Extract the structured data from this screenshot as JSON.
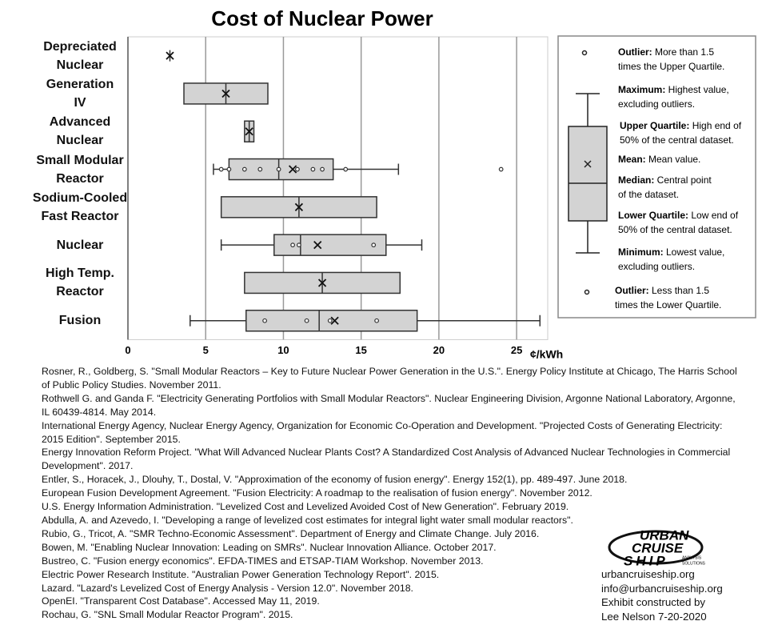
{
  "chart_data": {
    "type": "box",
    "title": "Cost of Nuclear Power",
    "x_label": "¢/kWh",
    "categories": [
      "Depreciated\nNuclear",
      "Generation\nIV",
      "Advanced\nNuclear",
      "Small Modular\nReactor",
      "Sodium-Cooled\nFast Reactor",
      "Nuclear",
      "High Temp.\nReactor",
      "Fusion"
    ],
    "boxes": [
      {
        "min": 2.7,
        "q1": 2.7,
        "median": 2.7,
        "q3": 2.7,
        "max": 2.7,
        "mean": 2.7,
        "points": [],
        "outliers": []
      },
      {
        "min": 3.6,
        "q1": 3.6,
        "median": 6.3,
        "q3": 9.0,
        "max": 9.0,
        "mean": 6.3,
        "points": [],
        "outliers": []
      },
      {
        "min": 7.5,
        "q1": 7.5,
        "median": 7.8,
        "q3": 8.1,
        "max": 8.1,
        "mean": 7.8,
        "points": [],
        "outliers": []
      },
      {
        "min": 5.5,
        "q1": 6.5,
        "median": 9.7,
        "q3": 13.2,
        "max": 17.4,
        "mean": 10.6,
        "points": [
          6.0,
          6.5,
          8.5,
          7.5,
          9.7,
          10.9,
          11.9,
          12.5,
          14.0
        ],
        "outliers": [
          24.0
        ]
      },
      {
        "min": 6.0,
        "q1": 6.0,
        "median": 11.0,
        "q3": 16.0,
        "max": 16.0,
        "mean": 11.0,
        "points": [],
        "outliers": []
      },
      {
        "min": 6.0,
        "q1": 9.4,
        "median": 11.1,
        "q3": 16.6,
        "max": 18.9,
        "mean": 12.2,
        "points": [
          10.6,
          11.0,
          15.8
        ],
        "outliers": []
      },
      {
        "min": 7.5,
        "q1": 7.5,
        "median": 12.5,
        "q3": 17.5,
        "max": 17.5,
        "mean": 12.5,
        "points": [],
        "outliers": []
      },
      {
        "min": 4.0,
        "q1": 7.6,
        "median": 12.3,
        "q3": 18.6,
        "max": 26.5,
        "mean": 13.3,
        "points": [
          8.8,
          11.5,
          13.0,
          16.0
        ],
        "outliers": []
      }
    ],
    "box_color": "#d3d3d3",
    "xlim": [
      0,
      27
    ],
    "xticks": [
      0,
      5,
      10,
      15,
      20,
      25
    ],
    "grid": true,
    "legend": [
      {
        "term": "Outlier:",
        "lines": [
          " More than 1.5",
          "times the Upper Quartile."
        ]
      },
      {
        "term": "Maximum:",
        "lines": [
          " Highest value,",
          "excluding outliers."
        ]
      },
      {
        "term": "Upper Quartile:",
        "lines": [
          " High end of",
          "50% of the central dataset."
        ]
      },
      {
        "term": "Mean:",
        "lines": [
          " Mean value."
        ]
      },
      {
        "term": "Median:",
        "lines": [
          " Central point",
          "of the dataset."
        ]
      },
      {
        "term": "Lower Quartile:",
        "lines": [
          " Low end of",
          "50% of the central dataset."
        ]
      },
      {
        "term": "Minimum:",
        "lines": [
          " Lowest value,",
          "excluding outliers."
        ]
      },
      {
        "term": "Outlier:",
        "lines": [
          " Less than 1.5",
          "times the Lower Quartile."
        ]
      }
    ]
  },
  "references": [
    "Rosner, R., Goldberg, S. \"Small Modular Reactors – Key to Future Nuclear Power Generation in the U.S.\". Energy Policy Institute at Chicago, The Harris School of Public Policy Studies. November 2011.",
    "Rothwell G. and Ganda F. \"Electricity Generating Portfolios with Small Modular Reactors\". Nuclear Engineering Division, Argonne National Laboratory, Argonne, IL 60439-4814. May 2014.",
    "International Energy Agency, Nuclear Energy Agency, Organization for Economic Co-Operation and Development. \"Projected Costs of Generating Electricity: 2015 Edition\". September 2015.",
    "Energy Innovation Reform Project. \"What Will Advanced Nuclear Plants Cost? A Standardized Cost Analysis of Advanced Nuclear Technologies in Commercial Development\". 2017.",
    "Entler, S., Horacek, J., Dlouhy, T., Dostal, V. \"Approximation of the economy of fusion energy\". Energy 152(1), pp. 489-497. June 2018.",
    "European Fusion Development Agreement. \"Fusion Electricity: A roadmap to the realisation of fusion energy\". November 2012.",
    "U.S. Energy Information Administration. \"Levelized Cost and Levelized Avoided Cost of New Generation\". February 2019.",
    "Abdulla, A. and Azevedo, I. \"Developing a range of levelized cost estimates for integral light water small modular reactors\".",
    "Rubio, G., Tricot, A. \"SMR Techno-Economic Assessment\". Department of Energy and Climate Change. July 2016.",
    "Bowen, M. \"Enabling Nuclear Innovation: Leading on SMRs\". Nuclear Innovation Alliance. October 2017.",
    "Bustreo, C. \"Fusion energy economics\". EFDA-TIMES and ETSAP-TIAM Workshop. November 2013.",
    "Electric Power Research Institute. \"Australian Power Generation Technology Report\". 2015.",
    "Lazard. \"Lazard's Levelized Cost of Energy Analysis - Version 12.0\". November 2018.",
    "OpenEI. \"Transparent Cost Database\". Accessed May 11, 2019.",
    "Rochau, G. \"SNL Small Modular Reactor Program\". 2015."
  ],
  "logo": {
    "line1": "URBAN",
    "line2": "CRUISE",
    "line3": "SHIP",
    "tag1": "ANALYSIS",
    "tag2": "SOLUTIONS"
  },
  "contact": [
    "urbancruiseship.org",
    "info@urbancruiseship.org",
    "Exhibit constructed by",
    "Lee Nelson 7-20-2020"
  ]
}
